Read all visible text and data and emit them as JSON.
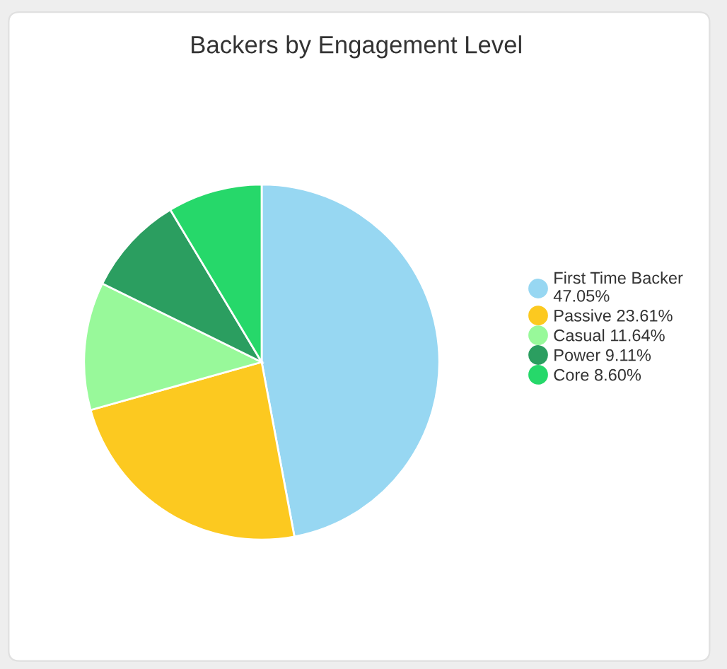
{
  "chart_data": {
    "type": "pie",
    "title": "Backers by Engagement Level",
    "categories": [
      "First Time Backer",
      "Passive",
      "Casual",
      "Power",
      "Core"
    ],
    "values": [
      47.05,
      23.61,
      11.64,
      9.11,
      8.6
    ],
    "value_labels": [
      "47.05%",
      "23.61%",
      "11.64%",
      "9.11%",
      "8.60%"
    ],
    "colors": [
      "#97d7f2",
      "#fcc920",
      "#98f99a",
      "#2b9e60",
      "#26d86a"
    ],
    "legend": "right"
  }
}
